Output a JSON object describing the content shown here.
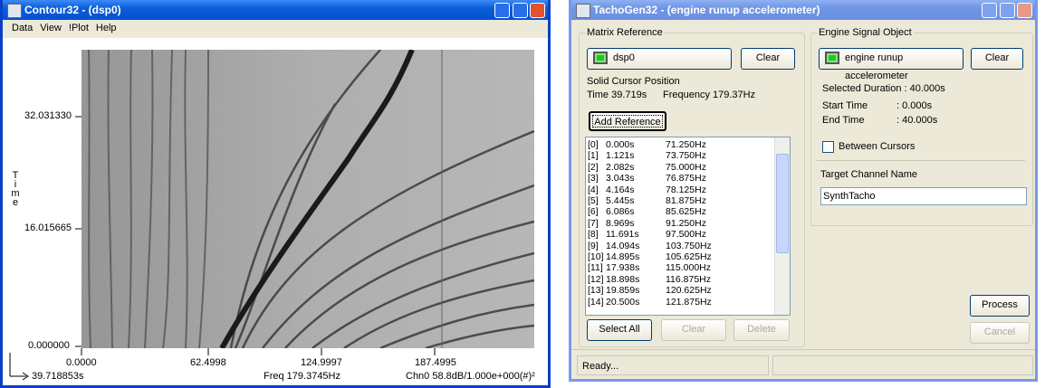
{
  "contour_window": {
    "title": "Contour32 - (dsp0)",
    "menu": [
      "Data",
      "View",
      "!Plot",
      "Help"
    ],
    "y_axis_label": "Time",
    "y_ticks": [
      "32.031330",
      "16.015665",
      "0.000000"
    ],
    "x_ticks": [
      "0.0000",
      "62.4998",
      "124.9997",
      "187.4995"
    ],
    "status": {
      "time": "39.718853s",
      "freq": "Freq 179.3745Hz",
      "channel": "Chn0 58.8dB/1.000e+000(#)²"
    }
  },
  "tacho_window": {
    "title": "TachoGen32 - (engine runup accelerometer)",
    "matrix_reference": {
      "group_title": "Matrix Reference",
      "source": "dsp0",
      "clear": "Clear",
      "cursor_heading": "Solid Cursor Position",
      "cursor_time": "Time 39.719s",
      "cursor_frequency": "Frequency 179.37Hz",
      "add_reference": "Add Reference",
      "rows": [
        [
          "[0]",
          "0.000s",
          "71.250Hz"
        ],
        [
          "[1]",
          "1.121s",
          "73.750Hz"
        ],
        [
          "[2]",
          "2.082s",
          "75.000Hz"
        ],
        [
          "[3]",
          "3.043s",
          "76.875Hz"
        ],
        [
          "[4]",
          "4.164s",
          "78.125Hz"
        ],
        [
          "[5]",
          "5.445s",
          "81.875Hz"
        ],
        [
          "[6]",
          "6.086s",
          "85.625Hz"
        ],
        [
          "[7]",
          "8.969s",
          "91.250Hz"
        ],
        [
          "[8]",
          "11.691s",
          "97.500Hz"
        ],
        [
          "[9]",
          "14.094s",
          "103.750Hz"
        ],
        [
          "[10]",
          "14.895s",
          "105.625Hz"
        ],
        [
          "[11]",
          "17.938s",
          "115.000Hz"
        ],
        [
          "[12]",
          "18.898s",
          "116.875Hz"
        ],
        [
          "[13]",
          "19.859s",
          "120.625Hz"
        ],
        [
          "[14]",
          "20.500s",
          "121.875Hz"
        ]
      ],
      "select_all": "Select All",
      "clear_list": "Clear",
      "delete": "Delete"
    },
    "engine_signal": {
      "group_title": "Engine Signal Object",
      "source": "engine runup accelerometer",
      "clear": "Clear",
      "selected_duration": "Selected Duration :  40.000s",
      "start_time_label": "Start Time",
      "start_time": ":  0.000s",
      "end_time_label": "End Time",
      "end_time": ":  40.000s",
      "between_cursors": "Between Cursors",
      "target_label": "Target Channel Name",
      "target_value": "SynthTacho"
    },
    "process": "Process",
    "cancel": "Cancel",
    "status": "Ready..."
  }
}
